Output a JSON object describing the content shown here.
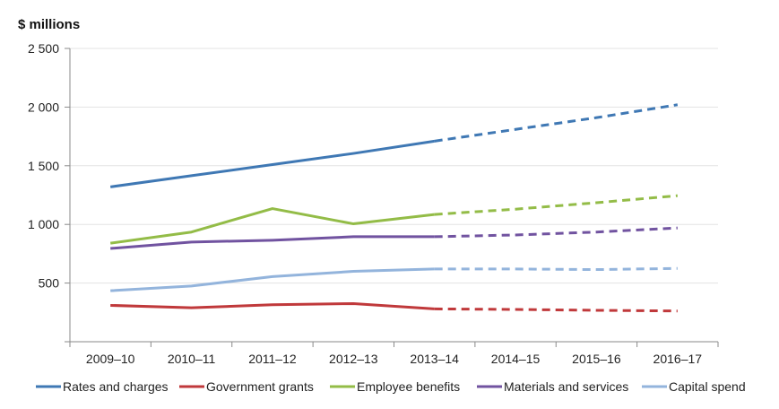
{
  "chart_data": {
    "type": "line",
    "title": "",
    "ylabel": "$ millions",
    "xlabel": "",
    "ylim": [
      0,
      2500
    ],
    "yticks": [
      500,
      1000,
      1500,
      2000,
      2500
    ],
    "ytick_labels": [
      "500",
      "1 000",
      "1 500",
      "2 000",
      "2 500"
    ],
    "categories": [
      "2009–10",
      "2010–11",
      "2011–12",
      "2012–13",
      "2013–14",
      "2014–15",
      "2015–16",
      "2016–17"
    ],
    "actual_through_index": 4,
    "grid": "horizontal",
    "legend_position": "bottom",
    "series": [
      {
        "name": "Rates and charges",
        "color": "#3f78b4",
        "values": [
          1320,
          1415,
          1510,
          1605,
          1710,
          1810,
          1910,
          2020
        ]
      },
      {
        "name": "Government grants",
        "color": "#c0393b",
        "values": [
          310,
          290,
          315,
          325,
          280,
          275,
          268,
          262
        ]
      },
      {
        "name": "Employee benefits",
        "color": "#93bc47",
        "values": [
          840,
          935,
          1135,
          1005,
          1085,
          1130,
          1185,
          1245
        ]
      },
      {
        "name": "Materials and services",
        "color": "#7153a0",
        "values": [
          795,
          850,
          865,
          895,
          895,
          910,
          935,
          970
        ]
      },
      {
        "name": "Capital spend",
        "color": "#93b4dc",
        "values": [
          435,
          475,
          555,
          600,
          620,
          620,
          615,
          625
        ]
      }
    ]
  }
}
